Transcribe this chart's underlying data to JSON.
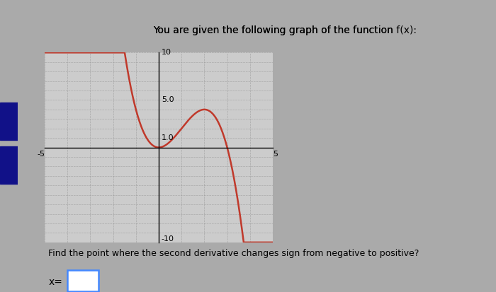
{
  "title_plain": "You are given the following graph of the function ",
  "title_math": "f(x):",
  "question": "Find the point where the second derivative changes sign from negative to positive?",
  "answer_label": "x=",
  "xlim": [
    -5,
    5
  ],
  "ylim": [
    -10,
    10
  ],
  "curve_color": "#c0392b",
  "plot_bg": "#cccccc",
  "fig_bg": "#aaaaaa",
  "grid_color": "#999999",
  "sidebar_color": "#1a1aaa",
  "sidebar_dark": "#111188"
}
